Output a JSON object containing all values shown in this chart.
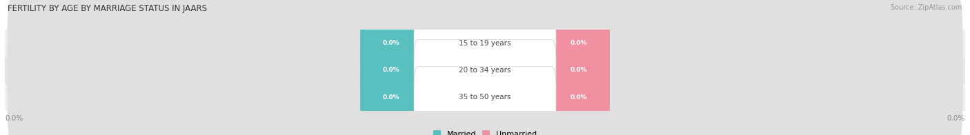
{
  "title": "FERTILITY BY AGE BY MARRIAGE STATUS IN JAARS",
  "source": "Source: ZipAtlas.com",
  "age_groups": [
    "15 to 19 years",
    "20 to 34 years",
    "35 to 50 years"
  ],
  "married_values": [
    0.0,
    0.0,
    0.0
  ],
  "unmarried_values": [
    0.0,
    0.0,
    0.0
  ],
  "married_color": "#5ABFBF",
  "unmarried_color": "#F090A0",
  "bar_bg_color": "#E0E0E0",
  "row_bg_colors": [
    "#F0F0F0",
    "#E6E6E6",
    "#F0F0F0"
  ],
  "background_color": "#ffffff",
  "legend_married": "Married",
  "legend_unmarried": "Unmarried",
  "x_axis_label_left": "0.0%",
  "x_axis_label_right": "0.0%",
  "title_fontsize": 8.5,
  "source_fontsize": 7.0,
  "age_label_fontsize": 7.5,
  "value_fontsize": 6.5,
  "legend_fontsize": 8.0,
  "axis_tick_fontsize": 7.5
}
